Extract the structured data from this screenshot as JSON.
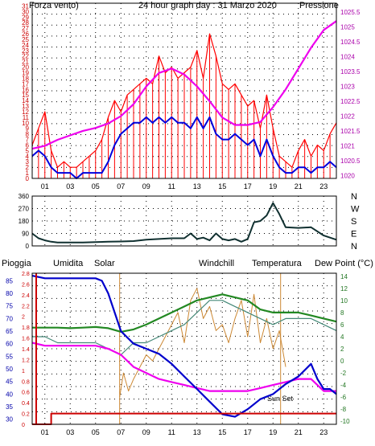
{
  "title": "24 hour graph day : 31 Marzo 2020",
  "colors": {
    "wind_gust": "#ff0000",
    "wind_avg": "#0000dd",
    "pressure": "#ee00ee",
    "direction": "#103030",
    "rain": "#cc0000",
    "humidity": "#0000cc",
    "solar": "#cc8833",
    "windchill": "#448877",
    "temperature": "#228822",
    "dewpoint": "#ee00ee",
    "grid": "#000000"
  },
  "hour_ticks": [
    "01",
    "03",
    "05",
    "07",
    "09",
    "11",
    "13",
    "15",
    "17",
    "19",
    "21",
    "23"
  ],
  "chart_data": [
    {
      "type": "line",
      "panel": "wind_pressure",
      "left_label": "Forza vento)",
      "right_label": "Pressione",
      "yleft_ticks": [
        "0",
        "1",
        "2",
        "3",
        "4",
        "5",
        "6",
        "7",
        "8",
        "9",
        "10",
        "11",
        "12",
        "13",
        "14",
        "15",
        "16",
        "17",
        "18",
        "19",
        "20",
        "21",
        "22",
        "23",
        "24",
        "25",
        "26",
        "27",
        "28",
        "29",
        "30",
        "31"
      ],
      "yleft_range": [
        0,
        31.5
      ],
      "yright_ticks": [
        "1020",
        "1020.5",
        "1021",
        "1021.5",
        "1022",
        "1022.5",
        "1023",
        "1023.5",
        "1024",
        "1024.5",
        "1025",
        "1025.5"
      ],
      "yright_range": [
        1019.9,
        1025.8
      ],
      "x_range": [
        0,
        24
      ],
      "series": [
        {
          "name": "Forza vento",
          "key": "gust",
          "x": [
            0,
            0.5,
            1,
            1.5,
            2,
            2.5,
            3,
            3.5,
            4,
            4.5,
            5,
            5.5,
            6,
            6.5,
            7,
            7.5,
            8,
            8.5,
            9,
            9.5,
            10,
            10.5,
            11,
            11.5,
            12,
            12.5,
            13,
            13.5,
            14,
            14.5,
            15,
            15.5,
            16,
            16.5,
            17,
            17.5,
            18,
            18.5,
            19,
            19.5,
            20,
            20.5,
            21,
            21.5,
            22,
            22.5,
            23,
            23.5,
            24
          ],
          "values": [
            6,
            9,
            12,
            5,
            2,
            3,
            2,
            2,
            3,
            4,
            5,
            7,
            11,
            14,
            12,
            15,
            16,
            17,
            18,
            17,
            22,
            19,
            20,
            18,
            19,
            20,
            23,
            18,
            26,
            22,
            17,
            16,
            17,
            15,
            13,
            14,
            9,
            15,
            9,
            4,
            3,
            2,
            5,
            7,
            4,
            6,
            5,
            8,
            10
          ]
        },
        {
          "name": "",
          "key": "avg",
          "x": [
            0,
            0.5,
            1,
            1.5,
            2,
            2.5,
            3,
            3.5,
            4,
            4.5,
            5,
            5.5,
            6,
            6.5,
            7,
            7.5,
            8,
            8.5,
            9,
            9.5,
            10,
            10.5,
            11,
            11.5,
            12,
            12.5,
            13,
            13.5,
            14,
            14.5,
            15,
            15.5,
            16,
            16.5,
            17,
            17.5,
            18,
            18.5,
            19,
            19.5,
            20,
            20.5,
            21,
            21.5,
            22,
            22.5,
            23,
            23.5,
            24
          ],
          "values": [
            4,
            5,
            4,
            2,
            1,
            1,
            1,
            0,
            1,
            1,
            1,
            1,
            3,
            6,
            8,
            9,
            10,
            10,
            11,
            10,
            11,
            10,
            11,
            10,
            10,
            9,
            11,
            9,
            11,
            8,
            7,
            7,
            8,
            7,
            6,
            7,
            4,
            7,
            4,
            2,
            1,
            1,
            2,
            2,
            1,
            2,
            2,
            3,
            2
          ]
        },
        {
          "name": "Pressione",
          "key": "pressure",
          "x": [
            0,
            1,
            2,
            3,
            4,
            5,
            6,
            7,
            8,
            9,
            10,
            11,
            12,
            13,
            14,
            15,
            16,
            17,
            18,
            19,
            20,
            21,
            22,
            23,
            24
          ],
          "values": [
            1020.9,
            1021.0,
            1021.2,
            1021.35,
            1021.5,
            1021.6,
            1021.75,
            1022.0,
            1022.4,
            1023.0,
            1023.45,
            1023.6,
            1023.4,
            1023.0,
            1022.5,
            1021.95,
            1021.7,
            1021.7,
            1021.8,
            1022.3,
            1022.9,
            1023.6,
            1024.3,
            1024.9,
            1025.2
          ]
        }
      ]
    },
    {
      "type": "line",
      "panel": "wind_direction",
      "right_labels": [
        "N",
        "W",
        "S",
        "E",
        "N"
      ],
      "y_ticks": [
        "0",
        "90",
        "180",
        "270",
        "360"
      ],
      "y_range": [
        0,
        360
      ],
      "x_range": [
        0,
        24
      ],
      "series": [
        {
          "name": "",
          "x": [
            0,
            0.5,
            1,
            1.5,
            2,
            3,
            4,
            5,
            6,
            7,
            8,
            9,
            10,
            11,
            12,
            12.5,
            13,
            13.5,
            14,
            14.5,
            15,
            15.5,
            16,
            16.5,
            17,
            17.5,
            18,
            18.5,
            19,
            19.5,
            20,
            21,
            22,
            23,
            24
          ],
          "values": [
            90,
            55,
            40,
            30,
            25,
            25,
            25,
            28,
            30,
            32,
            35,
            45,
            50,
            55,
            55,
            90,
            50,
            60,
            40,
            90,
            50,
            40,
            50,
            30,
            50,
            170,
            180,
            220,
            310,
            230,
            135,
            130,
            135,
            75,
            45
          ]
        }
      ]
    },
    {
      "type": "line",
      "panel": "atmospheric",
      "labels": {
        "rain": "Pioggia",
        "humidity": "Umidita",
        "solar": "Solar",
        "windchill": "Windchill",
        "temperature": "Temperatura",
        "dewpoint": "Dew Point (°C)"
      },
      "rain_ticks": [
        "0",
        "0.2",
        "0.4",
        "0.6",
        "0.8",
        "1",
        "1.2",
        "1.4",
        "1.6",
        "1.8",
        "2",
        "2.2",
        "2.4",
        "2.6",
        "2.8"
      ],
      "rain_range": [
        0,
        2.8
      ],
      "humidity_ticks": [
        "30",
        "35",
        "40",
        "45",
        "50",
        "55",
        "60",
        "65",
        "70",
        "75",
        "80",
        "85"
      ],
      "humidity_range": [
        28,
        88
      ],
      "temp_ticks": [
        "-10",
        "-8",
        "-6",
        "-4",
        "-2",
        "0",
        "2",
        "4",
        "6",
        "8",
        "10",
        "12",
        "14"
      ],
      "temp_range": [
        -10.5,
        14.5
      ],
      "x_range": [
        0,
        24
      ],
      "annotations": [
        "Sun Set"
      ],
      "series": [
        {
          "name": "Pioggia",
          "key": "rain",
          "x": [
            0,
            1.5,
            1.5,
            24
          ],
          "values": [
            0,
            0,
            0.2,
            0.2
          ]
        },
        {
          "name": "Umidita",
          "key": "humidity",
          "x": [
            0,
            1,
            2,
            3,
            4,
            5,
            5.5,
            6,
            7,
            8,
            9,
            10,
            11,
            12,
            13,
            14,
            15,
            16,
            17,
            18,
            19,
            20,
            21,
            22,
            22.5,
            23,
            23.5,
            24
          ],
          "values": [
            87,
            86,
            86,
            86,
            86,
            86,
            85,
            80,
            65,
            60,
            58,
            56,
            52,
            47,
            42,
            37,
            32,
            31,
            34,
            38,
            40,
            44,
            47,
            52,
            46,
            42,
            42,
            40
          ]
        },
        {
          "name": "Solar",
          "key": "solar",
          "x": [
            6.9,
            7.2,
            7.6,
            8,
            8.5,
            9,
            9.5,
            10,
            10.5,
            11,
            11.5,
            12,
            12.5,
            13,
            13.5,
            14,
            14.5,
            15,
            15.5,
            16,
            16.5,
            17,
            17.5,
            18,
            18.5,
            19,
            19.5,
            20
          ],
          "values": [
            -6,
            -2,
            -5,
            -3,
            -1,
            1,
            0,
            2,
            4,
            6,
            8,
            3,
            10,
            12,
            7,
            9,
            5,
            6,
            3,
            7,
            10,
            4,
            11,
            3,
            7,
            2,
            5,
            -1
          ]
        },
        {
          "name": "Windchill",
          "key": "windchill",
          "x": [
            0,
            1,
            2,
            3,
            4,
            5,
            6,
            7,
            8,
            9,
            10,
            11,
            12,
            13,
            14,
            15,
            16,
            17,
            18,
            19,
            20,
            21,
            22,
            23,
            24
          ],
          "values": [
            4,
            4,
            3,
            3,
            3,
            3,
            2,
            1,
            3,
            3,
            4,
            5,
            6,
            8,
            10,
            10,
            9,
            8,
            7,
            6,
            7,
            7,
            7,
            6,
            5
          ]
        },
        {
          "name": "Temperatura",
          "key": "temperature",
          "x": [
            0,
            1,
            2,
            3,
            4,
            5,
            6,
            7,
            8,
            9,
            10,
            11,
            12,
            13,
            14,
            15,
            16,
            17,
            18,
            19,
            20,
            21,
            22,
            23,
            24
          ],
          "values": [
            5.5,
            5.5,
            5.5,
            5.4,
            5.5,
            5.6,
            5.4,
            4.8,
            5.2,
            6,
            7,
            8,
            9,
            10,
            10.5,
            11,
            10.5,
            10,
            8.5,
            8,
            8,
            8,
            7.5,
            7,
            6.5
          ]
        },
        {
          "name": "Dew Point (°C)",
          "key": "dewpoint",
          "x": [
            0,
            1,
            2,
            3,
            4,
            5,
            6,
            7,
            8,
            9,
            10,
            11,
            12,
            13,
            14,
            15,
            16,
            17,
            18,
            19,
            20,
            21,
            22,
            23,
            24
          ],
          "values": [
            3,
            2.5,
            2.5,
            2.5,
            2.5,
            2.5,
            2,
            1,
            -1,
            -2,
            -3,
            -3.5,
            -4,
            -4.5,
            -5,
            -5,
            -5,
            -5,
            -4.5,
            -4,
            -3.5,
            -3,
            -3,
            -5,
            -5
          ]
        }
      ]
    }
  ]
}
